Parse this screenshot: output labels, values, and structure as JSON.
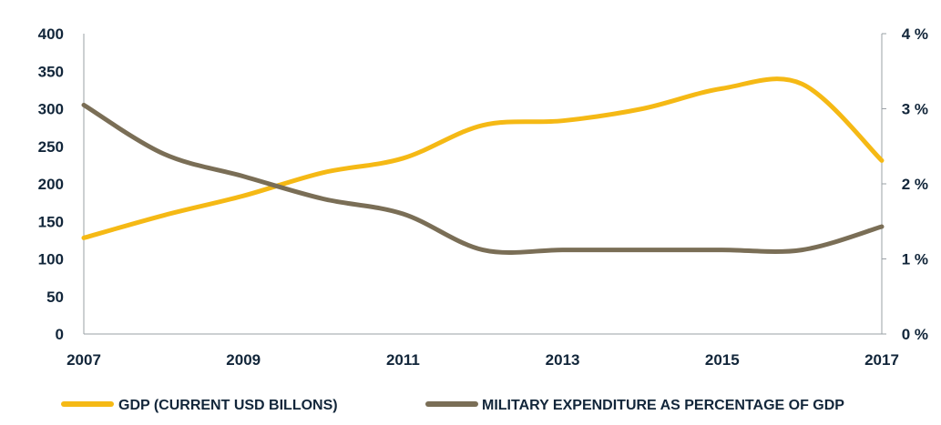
{
  "chart_data": {
    "type": "line",
    "title": "",
    "xlabel": "",
    "ylabel": "",
    "x": [
      2007,
      2008,
      2009,
      2010,
      2011,
      2012,
      2013,
      2014,
      2015,
      2016,
      2017
    ],
    "x_tick_labels": [
      "2007",
      "2009",
      "2011",
      "2013",
      "2015",
      "2017"
    ],
    "y_left": {
      "ylim": [
        0,
        400
      ],
      "ticks": [
        "0",
        "50",
        "100",
        "150",
        "200",
        "250",
        "300",
        "350",
        "400"
      ]
    },
    "y_right": {
      "ylim": [
        0,
        4
      ],
      "ticks": [
        "0 %",
        "1 %",
        "2 %",
        "3 %",
        "4 %"
      ]
    },
    "grid": false,
    "legend_position": "bottom",
    "series": [
      {
        "name": "GDP (CURRENT USD BILLONS)",
        "axis": "left",
        "color": "#f5b915",
        "values": [
          128,
          158,
          184,
          215,
          234,
          278,
          284,
          300,
          327,
          333,
          231
        ]
      },
      {
        "name": "MILITARY EXPENDITURE AS PERCENTAGE OF GDP",
        "axis": "right",
        "color": "#7a6e56",
        "values": [
          3.05,
          2.4,
          2.1,
          1.8,
          1.6,
          1.12,
          1.12,
          1.12,
          1.12,
          1.12,
          1.43
        ]
      }
    ]
  }
}
